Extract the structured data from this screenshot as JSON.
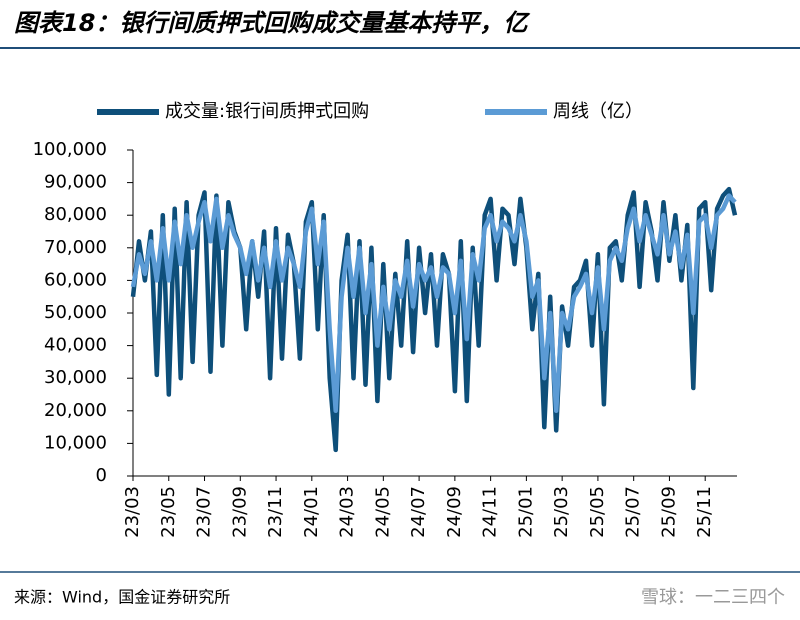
{
  "chart_data": {
    "type": "line",
    "title": "图表18：银行间质押式回购成交量基本持平，亿",
    "source": "来源：Wind，国金证券研究所",
    "watermark": "雪球：一二三四个",
    "categories": [
      "23/03",
      null,
      null,
      null,
      null,
      null,
      "23/05",
      null,
      null,
      null,
      null,
      null,
      "23/07",
      null,
      null,
      null,
      null,
      null,
      "23/09",
      null,
      null,
      null,
      null,
      null,
      "23/11",
      null,
      null,
      null,
      null,
      null,
      "24/01",
      null,
      null,
      null,
      null,
      null,
      "24/03",
      null,
      null,
      null,
      null,
      null,
      "24/05",
      null,
      null,
      null,
      null,
      null,
      "24/07",
      null,
      null,
      null,
      null,
      null,
      "24/09",
      null,
      null,
      null,
      null,
      null,
      "24/11",
      null,
      null,
      null,
      null,
      null,
      "25/01",
      null,
      null,
      null,
      null,
      null,
      "25/03",
      null,
      null,
      null,
      null,
      null,
      "25/05",
      null,
      null,
      null,
      null,
      null,
      "25/07",
      null,
      null,
      null,
      null,
      null,
      "25/09",
      null,
      null,
      null,
      null,
      null,
      "25/11",
      null,
      null,
      null,
      null,
      null
    ],
    "series": [
      {
        "name": "成交量:银行间质押式回购",
        "color": "#0e4f7a",
        "values": [
          55000,
          72000,
          60000,
          75000,
          31000,
          80000,
          25000,
          82000,
          30000,
          84000,
          35000,
          80000,
          87000,
          32000,
          86000,
          40000,
          84000,
          75000,
          70000,
          45000,
          72000,
          55000,
          75000,
          30000,
          76000,
          36000,
          74000,
          65000,
          36000,
          78000,
          84000,
          45000,
          80000,
          30000,
          8000,
          60000,
          74000,
          30000,
          72000,
          28000,
          70000,
          23000,
          65000,
          30000,
          62000,
          40000,
          72000,
          38000,
          70000,
          50000,
          68000,
          40000,
          68000,
          62000,
          26000,
          72000,
          23000,
          70000,
          40000,
          80000,
          85000,
          60000,
          82000,
          80000,
          65000,
          85000,
          70000,
          45000,
          62000,
          15000,
          55000,
          14000,
          52000,
          40000,
          58000,
          60000,
          66000,
          40000,
          68000,
          22000,
          70000,
          72000,
          60000,
          80000,
          87000,
          58000,
          84000,
          75000,
          60000,
          84000,
          66000,
          80000,
          60000,
          77000,
          27000,
          82000,
          84000,
          57000,
          82000,
          86000,
          88000,
          80000
        ]
      },
      {
        "name": "周线（亿）",
        "color": "#5b9bd5",
        "values": [
          58000,
          68000,
          62000,
          72000,
          60000,
          76000,
          60000,
          78000,
          65000,
          80000,
          70000,
          78000,
          84000,
          72000,
          85000,
          70000,
          80000,
          74000,
          70000,
          62000,
          72000,
          60000,
          70000,
          58000,
          72000,
          60000,
          70000,
          65000,
          58000,
          75000,
          82000,
          65000,
          78000,
          45000,
          20000,
          55000,
          70000,
          55000,
          70000,
          50000,
          65000,
          40000,
          58000,
          45000,
          60000,
          55000,
          66000,
          52000,
          65000,
          60000,
          64000,
          55000,
          64000,
          62000,
          50000,
          66000,
          42000,
          68000,
          60000,
          76000,
          80000,
          72000,
          78000,
          76000,
          72000,
          80000,
          72000,
          55000,
          60000,
          30000,
          50000,
          20000,
          50000,
          45000,
          55000,
          58000,
          62000,
          50000,
          64000,
          45000,
          66000,
          70000,
          66000,
          76000,
          82000,
          72000,
          80000,
          74000,
          68000,
          80000,
          68000,
          75000,
          64000,
          74000,
          50000,
          78000,
          80000,
          70000,
          80000,
          82000,
          86000,
          84000
        ]
      }
    ],
    "ylim": [
      0,
      100000
    ],
    "yticks": [
      0,
      {
        "value": 10000,
        "label": "10,000"
      },
      {
        "value": 20000,
        "label": "20,000"
      },
      {
        "value": 30000,
        "label": "30,000"
      },
      {
        "value": 40000,
        "label": "40,000"
      },
      {
        "value": 50000,
        "label": "50,000"
      },
      {
        "value": 60000,
        "label": "60,000"
      },
      {
        "value": 70000,
        "label": "70,000"
      },
      {
        "value": 80000,
        "label": "80,000"
      },
      {
        "value": 90000,
        "label": "90,000"
      },
      {
        "value": 100000,
        "label": "100,000"
      }
    ],
    "legend": "top"
  }
}
